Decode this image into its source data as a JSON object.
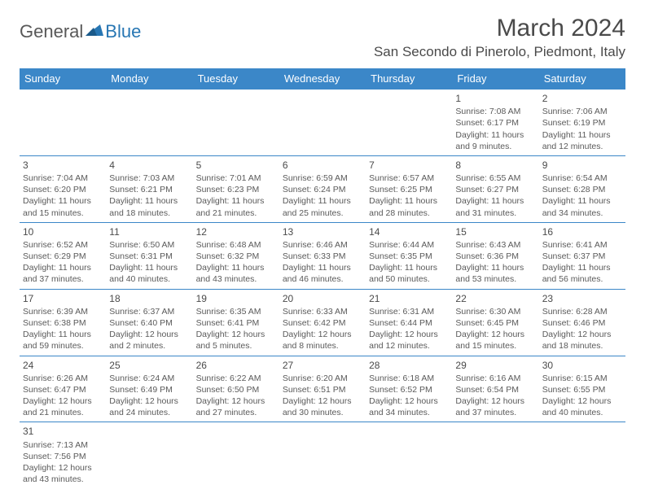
{
  "logo": {
    "part1": "General",
    "part2": "Blue"
  },
  "title": "March 2024",
  "location": "San Secondo di Pinerolo, Piedmont, Italy",
  "colors": {
    "header_bg": "#3b87c8",
    "header_fg": "#ffffff",
    "border": "#3b87c8",
    "text": "#4a4a4a",
    "logo_blue": "#2776b3"
  },
  "day_headers": [
    "Sunday",
    "Monday",
    "Tuesday",
    "Wednesday",
    "Thursday",
    "Friday",
    "Saturday"
  ],
  "weeks": [
    [
      null,
      null,
      null,
      null,
      null,
      {
        "n": "1",
        "sr": "Sunrise: 7:08 AM",
        "ss": "Sunset: 6:17 PM",
        "dl": "Daylight: 11 hours and 9 minutes."
      },
      {
        "n": "2",
        "sr": "Sunrise: 7:06 AM",
        "ss": "Sunset: 6:19 PM",
        "dl": "Daylight: 11 hours and 12 minutes."
      }
    ],
    [
      {
        "n": "3",
        "sr": "Sunrise: 7:04 AM",
        "ss": "Sunset: 6:20 PM",
        "dl": "Daylight: 11 hours and 15 minutes."
      },
      {
        "n": "4",
        "sr": "Sunrise: 7:03 AM",
        "ss": "Sunset: 6:21 PM",
        "dl": "Daylight: 11 hours and 18 minutes."
      },
      {
        "n": "5",
        "sr": "Sunrise: 7:01 AM",
        "ss": "Sunset: 6:23 PM",
        "dl": "Daylight: 11 hours and 21 minutes."
      },
      {
        "n": "6",
        "sr": "Sunrise: 6:59 AM",
        "ss": "Sunset: 6:24 PM",
        "dl": "Daylight: 11 hours and 25 minutes."
      },
      {
        "n": "7",
        "sr": "Sunrise: 6:57 AM",
        "ss": "Sunset: 6:25 PM",
        "dl": "Daylight: 11 hours and 28 minutes."
      },
      {
        "n": "8",
        "sr": "Sunrise: 6:55 AM",
        "ss": "Sunset: 6:27 PM",
        "dl": "Daylight: 11 hours and 31 minutes."
      },
      {
        "n": "9",
        "sr": "Sunrise: 6:54 AM",
        "ss": "Sunset: 6:28 PM",
        "dl": "Daylight: 11 hours and 34 minutes."
      }
    ],
    [
      {
        "n": "10",
        "sr": "Sunrise: 6:52 AM",
        "ss": "Sunset: 6:29 PM",
        "dl": "Daylight: 11 hours and 37 minutes."
      },
      {
        "n": "11",
        "sr": "Sunrise: 6:50 AM",
        "ss": "Sunset: 6:31 PM",
        "dl": "Daylight: 11 hours and 40 minutes."
      },
      {
        "n": "12",
        "sr": "Sunrise: 6:48 AM",
        "ss": "Sunset: 6:32 PM",
        "dl": "Daylight: 11 hours and 43 minutes."
      },
      {
        "n": "13",
        "sr": "Sunrise: 6:46 AM",
        "ss": "Sunset: 6:33 PM",
        "dl": "Daylight: 11 hours and 46 minutes."
      },
      {
        "n": "14",
        "sr": "Sunrise: 6:44 AM",
        "ss": "Sunset: 6:35 PM",
        "dl": "Daylight: 11 hours and 50 minutes."
      },
      {
        "n": "15",
        "sr": "Sunrise: 6:43 AM",
        "ss": "Sunset: 6:36 PM",
        "dl": "Daylight: 11 hours and 53 minutes."
      },
      {
        "n": "16",
        "sr": "Sunrise: 6:41 AM",
        "ss": "Sunset: 6:37 PM",
        "dl": "Daylight: 11 hours and 56 minutes."
      }
    ],
    [
      {
        "n": "17",
        "sr": "Sunrise: 6:39 AM",
        "ss": "Sunset: 6:38 PM",
        "dl": "Daylight: 11 hours and 59 minutes."
      },
      {
        "n": "18",
        "sr": "Sunrise: 6:37 AM",
        "ss": "Sunset: 6:40 PM",
        "dl": "Daylight: 12 hours and 2 minutes."
      },
      {
        "n": "19",
        "sr": "Sunrise: 6:35 AM",
        "ss": "Sunset: 6:41 PM",
        "dl": "Daylight: 12 hours and 5 minutes."
      },
      {
        "n": "20",
        "sr": "Sunrise: 6:33 AM",
        "ss": "Sunset: 6:42 PM",
        "dl": "Daylight: 12 hours and 8 minutes."
      },
      {
        "n": "21",
        "sr": "Sunrise: 6:31 AM",
        "ss": "Sunset: 6:44 PM",
        "dl": "Daylight: 12 hours and 12 minutes."
      },
      {
        "n": "22",
        "sr": "Sunrise: 6:30 AM",
        "ss": "Sunset: 6:45 PM",
        "dl": "Daylight: 12 hours and 15 minutes."
      },
      {
        "n": "23",
        "sr": "Sunrise: 6:28 AM",
        "ss": "Sunset: 6:46 PM",
        "dl": "Daylight: 12 hours and 18 minutes."
      }
    ],
    [
      {
        "n": "24",
        "sr": "Sunrise: 6:26 AM",
        "ss": "Sunset: 6:47 PM",
        "dl": "Daylight: 12 hours and 21 minutes."
      },
      {
        "n": "25",
        "sr": "Sunrise: 6:24 AM",
        "ss": "Sunset: 6:49 PM",
        "dl": "Daylight: 12 hours and 24 minutes."
      },
      {
        "n": "26",
        "sr": "Sunrise: 6:22 AM",
        "ss": "Sunset: 6:50 PM",
        "dl": "Daylight: 12 hours and 27 minutes."
      },
      {
        "n": "27",
        "sr": "Sunrise: 6:20 AM",
        "ss": "Sunset: 6:51 PM",
        "dl": "Daylight: 12 hours and 30 minutes."
      },
      {
        "n": "28",
        "sr": "Sunrise: 6:18 AM",
        "ss": "Sunset: 6:52 PM",
        "dl": "Daylight: 12 hours and 34 minutes."
      },
      {
        "n": "29",
        "sr": "Sunrise: 6:16 AM",
        "ss": "Sunset: 6:54 PM",
        "dl": "Daylight: 12 hours and 37 minutes."
      },
      {
        "n": "30",
        "sr": "Sunrise: 6:15 AM",
        "ss": "Sunset: 6:55 PM",
        "dl": "Daylight: 12 hours and 40 minutes."
      }
    ],
    [
      {
        "n": "31",
        "sr": "Sunrise: 7:13 AM",
        "ss": "Sunset: 7:56 PM",
        "dl": "Daylight: 12 hours and 43 minutes."
      },
      null,
      null,
      null,
      null,
      null,
      null
    ]
  ]
}
